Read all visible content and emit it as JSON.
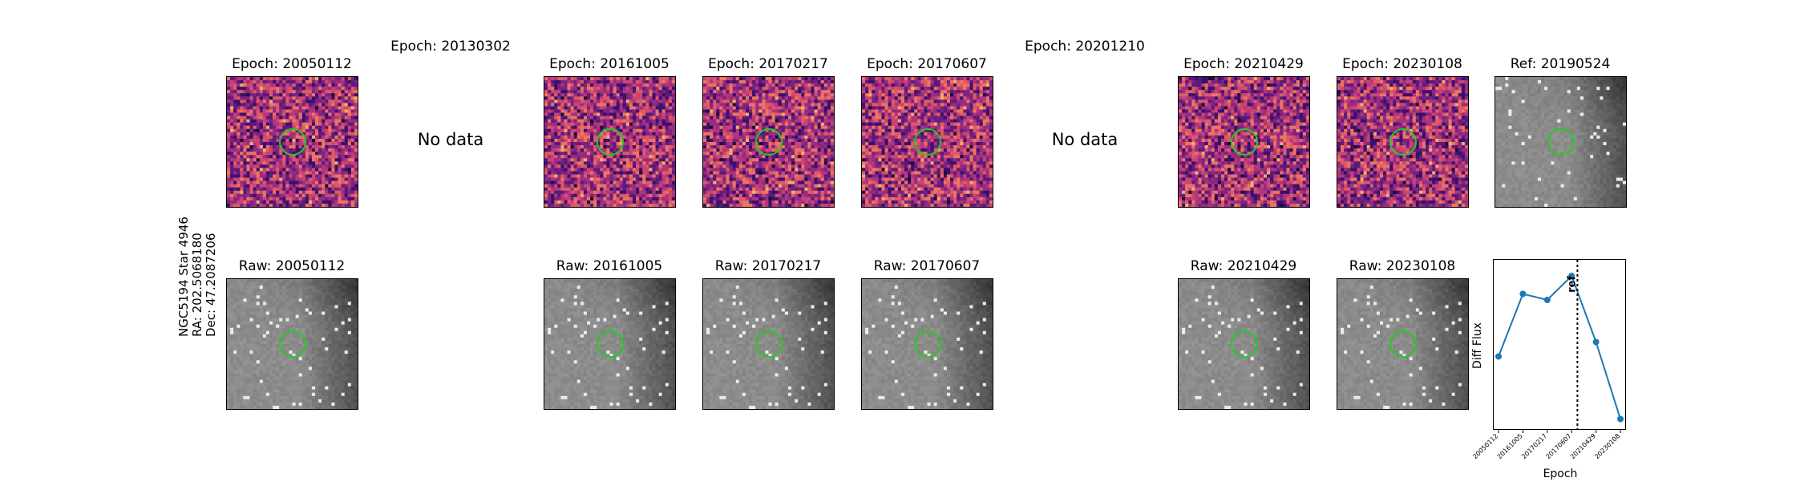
{
  "side_label": [
    "NGC5194 Star 4946",
    "RA: 202.5068180",
    "Dec: 47.2087206"
  ],
  "columns": [
    {
      "diff_title": "Epoch: 20050112",
      "raw_title": "Raw: 20050112",
      "has_data": true
    },
    {
      "diff_title": "Epoch: 20130302",
      "raw_title": "",
      "has_data": false,
      "no_data_text": "No data"
    },
    {
      "diff_title": "Epoch: 20161005",
      "raw_title": "Raw: 20161005",
      "has_data": true
    },
    {
      "diff_title": "Epoch: 20170217",
      "raw_title": "Raw: 20170217",
      "has_data": true
    },
    {
      "diff_title": "Epoch: 20170607",
      "raw_title": "Raw: 20170607",
      "has_data": true
    },
    {
      "diff_title": "Epoch: 20201210",
      "raw_title": "",
      "has_data": false,
      "no_data_text": "No data"
    },
    {
      "diff_title": "Epoch: 20210429",
      "raw_title": "Raw: 20210429",
      "has_data": true
    },
    {
      "diff_title": "Epoch: 20230108",
      "raw_title": "Raw: 20230108",
      "has_data": true
    }
  ],
  "ref_title": "Ref: 20190524",
  "colors": {
    "circle": "#22cc22",
    "line": "#1f77b4",
    "frame": "#000000"
  },
  "chart_data": {
    "type": "line",
    "x": [
      "20050112",
      "20161005",
      "20170217",
      "20170607",
      "20210429",
      "20230108"
    ],
    "values": [
      0.25,
      0.77,
      0.72,
      0.92,
      0.37,
      -0.27
    ],
    "xlabel": "Epoch",
    "ylabel": "Diff Flux",
    "ref_line_label": "ref",
    "ylim": [
      -0.3,
      1.0
    ]
  }
}
